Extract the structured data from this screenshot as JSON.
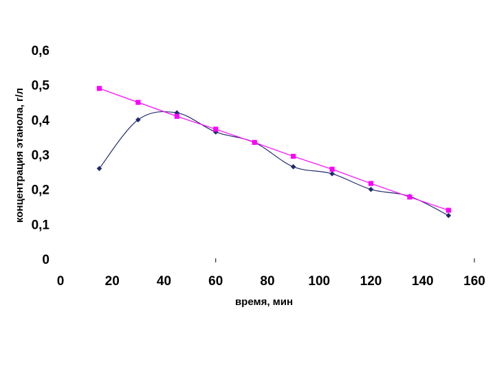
{
  "chart_data": {
    "type": "line",
    "title": "",
    "xlabel": "время, мин",
    "ylabel": "концентрация этанола, г/л",
    "xlim": [
      0,
      160
    ],
    "ylim": [
      0,
      0.6
    ],
    "x_ticks": [
      0,
      20,
      40,
      60,
      80,
      100,
      120,
      140,
      160
    ],
    "x_tick_labels": [
      "0",
      "20",
      "40",
      "60",
      "80",
      "100",
      "120",
      "140",
      "160"
    ],
    "y_ticks": [
      0,
      0.1,
      0.2,
      0.3,
      0.4,
      0.5,
      0.6
    ],
    "y_tick_labels": [
      "0",
      "0,1",
      "0,2",
      "0,3",
      "0,4",
      "0,5",
      "0,6"
    ],
    "grid": false,
    "legend": "none",
    "series": [
      {
        "marker": "diamond",
        "color": "#1f2a6b",
        "smooth": true,
        "x": [
          15,
          30,
          45,
          60,
          75,
          90,
          105,
          120,
          135,
          150
        ],
        "y": [
          0.26,
          0.4,
          0.42,
          0.365,
          0.335,
          0.265,
          0.245,
          0.2,
          0.18,
          0.125
        ]
      },
      {
        "marker": "square",
        "color": "#ff00ff",
        "smooth": false,
        "x": [
          15,
          30,
          45,
          60,
          75,
          90,
          105,
          120,
          135,
          150
        ],
        "y": [
          0.49,
          0.45,
          0.41,
          0.373,
          0.335,
          0.295,
          0.258,
          0.217,
          0.178,
          0.14
        ]
      }
    ]
  }
}
